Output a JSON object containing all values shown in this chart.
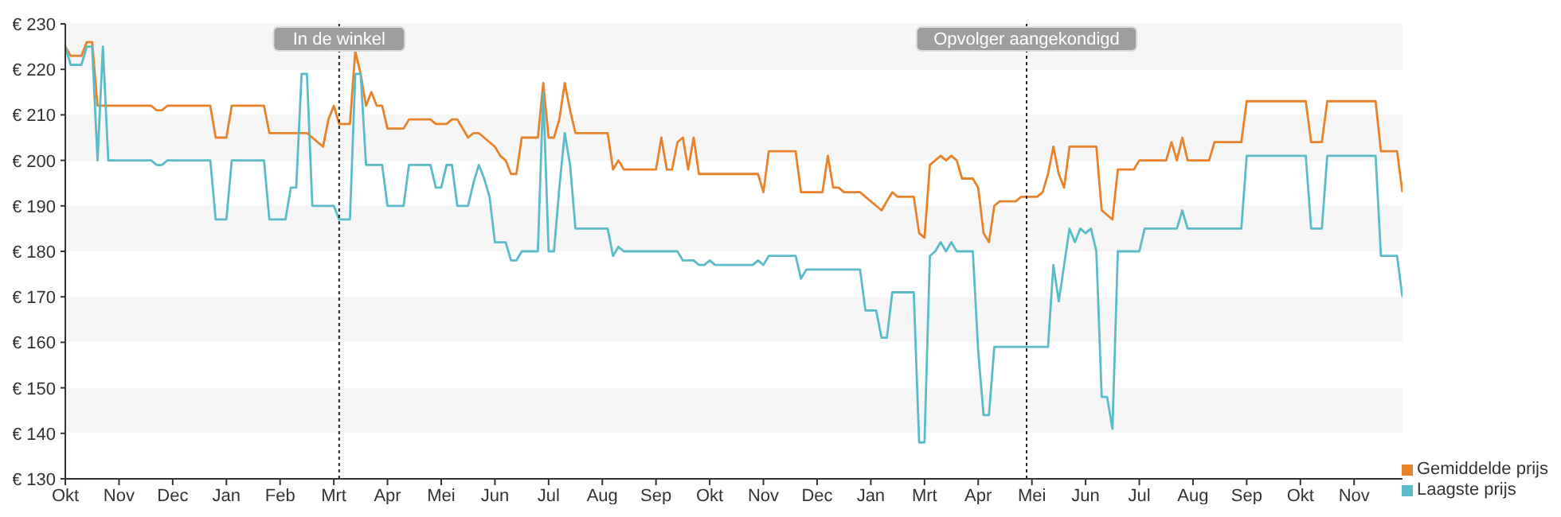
{
  "chart_data": {
    "type": "line",
    "categories": [
      "Okt",
      null,
      null,
      null,
      null,
      null,
      null,
      null,
      null,
      null,
      "Nov",
      null,
      null,
      null,
      null,
      null,
      null,
      null,
      null,
      null,
      "Dec",
      null,
      null,
      null,
      null,
      null,
      null,
      null,
      null,
      null,
      "Jan",
      null,
      null,
      null,
      null,
      null,
      null,
      null,
      null,
      null,
      "Feb",
      null,
      null,
      null,
      null,
      null,
      null,
      null,
      null,
      null,
      "Mrt",
      null,
      null,
      null,
      null,
      null,
      null,
      null,
      null,
      null,
      "Apr",
      null,
      null,
      null,
      null,
      null,
      null,
      null,
      null,
      null,
      "Mei",
      null,
      null,
      null,
      null,
      null,
      null,
      null,
      null,
      null,
      "Jun",
      null,
      null,
      null,
      null,
      null,
      null,
      null,
      null,
      null,
      "Jul",
      null,
      null,
      null,
      null,
      null,
      null,
      null,
      null,
      null,
      "Aug",
      null,
      null,
      null,
      null,
      null,
      null,
      null,
      null,
      null,
      "Sep",
      null,
      null,
      null,
      null,
      null,
      null,
      null,
      null,
      null,
      "Okt",
      null,
      null,
      null,
      null,
      null,
      null,
      null,
      null,
      null,
      "Nov",
      null,
      null,
      null,
      null,
      null,
      null,
      null,
      null,
      null,
      "Dec",
      null,
      null,
      null,
      null,
      null,
      null,
      null,
      null,
      null,
      "Jan",
      null,
      null,
      null,
      null,
      null,
      null,
      null,
      null,
      null,
      "Mrt",
      null,
      null,
      null,
      null,
      null,
      null,
      null,
      null,
      null,
      "Apr",
      null,
      null,
      null,
      null,
      null,
      null,
      null,
      null,
      null,
      "Mei",
      null,
      null,
      null,
      null,
      null,
      null,
      null,
      null,
      null,
      "Jun",
      null,
      null,
      null,
      null,
      null,
      null,
      null,
      null,
      null,
      "Jul",
      null,
      null,
      null,
      null,
      null,
      null,
      null,
      null,
      null,
      "Aug",
      null,
      null,
      null,
      null,
      null,
      null,
      null,
      null,
      null,
      "Sep",
      null,
      null,
      null,
      null,
      null,
      null,
      null,
      null,
      null,
      "Okt",
      null,
      null,
      null,
      null,
      null,
      null,
      null,
      null,
      null,
      "Nov",
      null,
      null,
      null,
      null,
      null,
      null,
      null,
      null,
      null
    ],
    "ylim": [
      130,
      230
    ],
    "yticks": [
      {
        "value": 130,
        "label": "€ 130"
      },
      {
        "value": 140,
        "label": "€ 140"
      },
      {
        "value": 150,
        "label": "€ 150"
      },
      {
        "value": 160,
        "label": "€ 160"
      },
      {
        "value": 170,
        "label": "€ 170"
      },
      {
        "value": 180,
        "label": "€ 180"
      },
      {
        "value": 190,
        "label": "€ 190"
      },
      {
        "value": 200,
        "label": "€ 200"
      },
      {
        "value": 210,
        "label": "€ 210"
      },
      {
        "value": 220,
        "label": "€ 220"
      },
      {
        "value": 230,
        "label": "€ 230"
      }
    ],
    "legend": "bottom right",
    "annotations": [
      "In de winkel",
      "Opvolger aangekondigd"
    ],
    "series": [
      {
        "name": "Gemiddelde prijs",
        "color": "#e8822b",
        "values": [
          225,
          223,
          223,
          223,
          226,
          226,
          212,
          212,
          212,
          212,
          212,
          212,
          212,
          212,
          212,
          212,
          212,
          211,
          211,
          212,
          212,
          212,
          212,
          212,
          212,
          212,
          212,
          212,
          205,
          205,
          205,
          212,
          212,
          212,
          212,
          212,
          212,
          212,
          206,
          206,
          206,
          206,
          206,
          206,
          206,
          206,
          205,
          204,
          203,
          209,
          212,
          208,
          208,
          208,
          224,
          219,
          212,
          215,
          212,
          212,
          207,
          207,
          207,
          207,
          209,
          209,
          209,
          209,
          209,
          208,
          208,
          208,
          209,
          209,
          207,
          205,
          206,
          206,
          205,
          204,
          203,
          201,
          200,
          197,
          197,
          205,
          205,
          205,
          205,
          217,
          205,
          205,
          209,
          217,
          211,
          206,
          206,
          206,
          206,
          206,
          206,
          206,
          198,
          200,
          198,
          198,
          198,
          198,
          198,
          198,
          198,
          205,
          198,
          198,
          204,
          205,
          198,
          205,
          197,
          197,
          197,
          197,
          197,
          197,
          197,
          197,
          197,
          197,
          197,
          197,
          193,
          202,
          202,
          202,
          202,
          202,
          202,
          193,
          193,
          193,
          193,
          193,
          201,
          194,
          194,
          193,
          193,
          193,
          193,
          192,
          191,
          190,
          189,
          191,
          193,
          192,
          192,
          192,
          192,
          184,
          183,
          199,
          200,
          201,
          200,
          201,
          200,
          196,
          196,
          196,
          194,
          184,
          182,
          190,
          191,
          191,
          191,
          191,
          192,
          192,
          192,
          192,
          193,
          197,
          203,
          197,
          194,
          203,
          203,
          203,
          203,
          203,
          203,
          189,
          188,
          187,
          198,
          198,
          198,
          198,
          200,
          200,
          200,
          200,
          200,
          200,
          204,
          200,
          205,
          200,
          200,
          200,
          200,
          200,
          204,
          204,
          204,
          204,
          204,
          204,
          213,
          213,
          213,
          213,
          213,
          213,
          213,
          213,
          213,
          213,
          213,
          213,
          204,
          204,
          204,
          213,
          213,
          213,
          213,
          213,
          213,
          213,
          213,
          213,
          213,
          202,
          202,
          202,
          202,
          193
        ]
      },
      {
        "name": "Laagste prijs",
        "color": "#5bbcc8",
        "values": [
          225,
          221,
          221,
          221,
          225,
          225,
          200,
          225,
          200,
          200,
          200,
          200,
          200,
          200,
          200,
          200,
          200,
          199,
          199,
          200,
          200,
          200,
          200,
          200,
          200,
          200,
          200,
          200,
          187,
          187,
          187,
          200,
          200,
          200,
          200,
          200,
          200,
          200,
          187,
          187,
          187,
          187,
          194,
          194,
          219,
          219,
          190,
          190,
          190,
          190,
          190,
          187,
          187,
          187,
          219,
          219,
          199,
          199,
          199,
          199,
          190,
          190,
          190,
          190,
          199,
          199,
          199,
          199,
          199,
          194,
          194,
          199,
          199,
          190,
          190,
          190,
          195,
          199,
          196,
          192,
          182,
          182,
          182,
          178,
          178,
          180,
          180,
          180,
          180,
          215,
          180,
          180,
          194,
          206,
          199,
          185,
          185,
          185,
          185,
          185,
          185,
          185,
          179,
          181,
          180,
          180,
          180,
          180,
          180,
          180,
          180,
          180,
          180,
          180,
          180,
          178,
          178,
          178,
          177,
          177,
          178,
          177,
          177,
          177,
          177,
          177,
          177,
          177,
          177,
          178,
          177,
          179,
          179,
          179,
          179,
          179,
          179,
          174,
          176,
          176,
          176,
          176,
          176,
          176,
          176,
          176,
          176,
          176,
          176,
          167,
          167,
          167,
          161,
          161,
          171,
          171,
          171,
          171,
          171,
          138,
          138,
          179,
          180,
          182,
          180,
          182,
          180,
          180,
          180,
          180,
          158,
          144,
          144,
          159,
          159,
          159,
          159,
          159,
          159,
          159,
          159,
          159,
          159,
          159,
          177,
          169,
          177,
          185,
          182,
          185,
          184,
          185,
          180,
          148,
          148,
          141,
          180,
          180,
          180,
          180,
          180,
          185,
          185,
          185,
          185,
          185,
          185,
          185,
          189,
          185,
          185,
          185,
          185,
          185,
          185,
          185,
          185,
          185,
          185,
          185,
          201,
          201,
          201,
          201,
          201,
          201,
          201,
          201,
          201,
          201,
          201,
          201,
          185,
          185,
          185,
          201,
          201,
          201,
          201,
          201,
          201,
          201,
          201,
          201,
          201,
          179,
          179,
          179,
          179,
          170
        ]
      }
    ]
  }
}
